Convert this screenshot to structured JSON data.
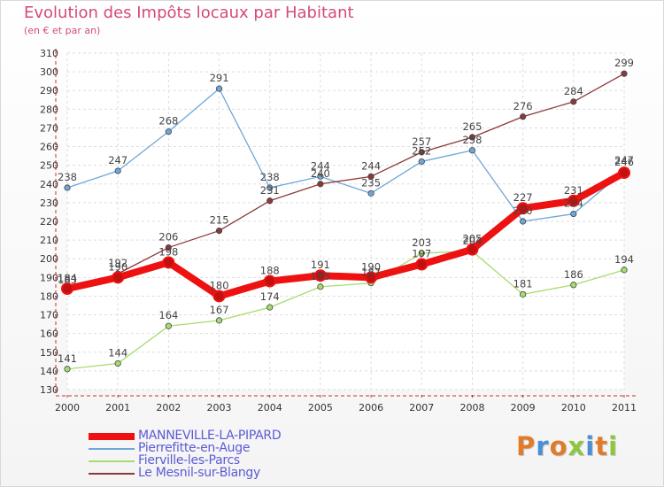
{
  "header": {
    "title": "Evolution des Impôts locaux par Habitant",
    "subtitle": "(en € et par an)"
  },
  "logo": {
    "text": "Proxiti",
    "colors": [
      "#e07b2b",
      "#4a8fd6",
      "#e07b2b",
      "#8dc63f",
      "#4a8fd6",
      "#e07b2b",
      "#8dc63f"
    ]
  },
  "chart_data": {
    "type": "line",
    "x": [
      2000,
      2001,
      2002,
      2003,
      2004,
      2005,
      2006,
      2007,
      2008,
      2009,
      2010,
      2011
    ],
    "ylim": [
      130,
      310
    ],
    "yticks": [
      130,
      140,
      150,
      160,
      170,
      180,
      190,
      200,
      210,
      220,
      230,
      240,
      250,
      260,
      270,
      280,
      290,
      300,
      310
    ],
    "grid": true,
    "legend_position": "bottom-left",
    "series": [
      {
        "name": "MANNEVILLE-LA-PIPARD",
        "color": "#ee1111",
        "values": [
          184,
          190,
          198,
          180,
          188,
          191,
          190,
          197,
          205,
          227,
          231,
          246
        ]
      },
      {
        "name": "Pierrefitte-en-Auge",
        "color": "#6ea7d8",
        "values": [
          238,
          247,
          268,
          291,
          238,
          244,
          235,
          252,
          258,
          220,
          224,
          247
        ]
      },
      {
        "name": "Fierville-les-Parcs",
        "color": "#a6dc6e",
        "values": [
          141,
          144,
          164,
          167,
          174,
          185,
          187,
          203,
          204,
          181,
          186,
          194
        ]
      },
      {
        "name": "Le Mesnil-sur-Blangy",
        "color": "#8a3a3a",
        "values": [
          183,
          192,
          206,
          215,
          231,
          240,
          244,
          257,
          265,
          276,
          284,
          299
        ]
      }
    ]
  }
}
